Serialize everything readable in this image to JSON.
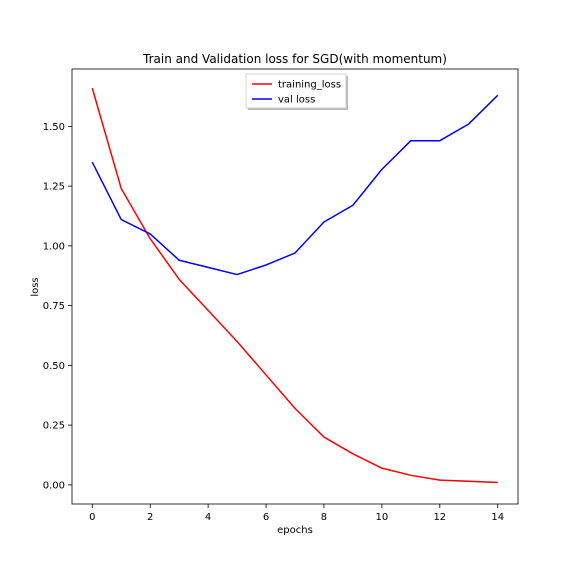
{
  "chart_data": {
    "type": "line",
    "title": "Train and Validation loss for SGD(with momentum)",
    "xlabel": "epochs",
    "ylabel": "loss",
    "xlim": [
      -0.7,
      14.7
    ],
    "ylim": [
      -0.08,
      1.74
    ],
    "xticks": [
      0,
      2,
      4,
      6,
      8,
      10,
      12,
      14
    ],
    "yticks": [
      0.0,
      0.25,
      0.5,
      0.75,
      1.0,
      1.25,
      1.5
    ],
    "xtick_labels": [
      "0",
      "2",
      "4",
      "6",
      "8",
      "10",
      "12",
      "14"
    ],
    "ytick_labels": [
      "0.00",
      "0.25",
      "0.50",
      "0.75",
      "1.00",
      "1.25",
      "1.50"
    ],
    "grid": false,
    "legend_position": "top-center",
    "x": [
      0,
      1,
      2,
      3,
      4,
      5,
      6,
      7,
      8,
      9,
      10,
      11,
      12,
      13,
      14
    ],
    "series": [
      {
        "name": "training_loss",
        "color": "#ff0000",
        "values": [
          1.66,
          1.24,
          1.03,
          0.86,
          0.73,
          0.6,
          0.46,
          0.32,
          0.2,
          0.13,
          0.07,
          0.04,
          0.02,
          0.015,
          0.01
        ]
      },
      {
        "name": "val loss",
        "color": "#0000ff",
        "values": [
          1.35,
          1.11,
          1.05,
          0.94,
          0.91,
          0.88,
          0.92,
          0.97,
          1.1,
          1.17,
          1.32,
          1.44,
          1.44,
          1.51,
          1.63
        ]
      }
    ]
  }
}
